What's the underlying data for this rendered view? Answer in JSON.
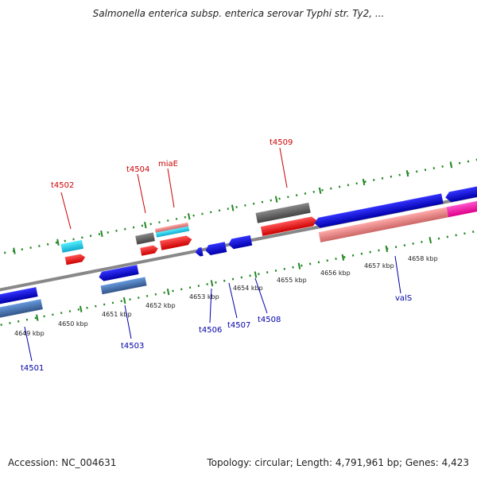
{
  "title": "Salmonella enterica subsp. enterica serovar Typhi str. Ty2, ...",
  "footer": {
    "accession": "Accession: NC_004631",
    "summary": "Topology: circular; Length: 4,791,961 bp; Genes: 4,423"
  },
  "axis_ticks": [
    "4649 kbp",
    "4650 kbp",
    "4651 kbp",
    "4652 kbp",
    "4653 kbp",
    "4654 kbp",
    "4655 kbp",
    "4656 kbp",
    "4657 kbp",
    "4658 kbp"
  ],
  "gene_labels": {
    "forward": [
      "t4502",
      "t4504",
      "miaE",
      "t4509"
    ],
    "reverse": [
      "t4501",
      "t4503",
      "t4506",
      "t4507",
      "t4508",
      "valS"
    ]
  },
  "colors": {
    "forward_label": "#cc0000",
    "reverse_label": "#0000aa",
    "backbone": "#888888",
    "ticks": "#228822",
    "cds_forward": "#ff0000",
    "cds_reverse": "#0000ee",
    "trna": "#22ccdd",
    "misc": "#666666",
    "rrna_pink": "#ee8888",
    "steelblue": "#4477bb",
    "magenta": "#ff22aa"
  }
}
